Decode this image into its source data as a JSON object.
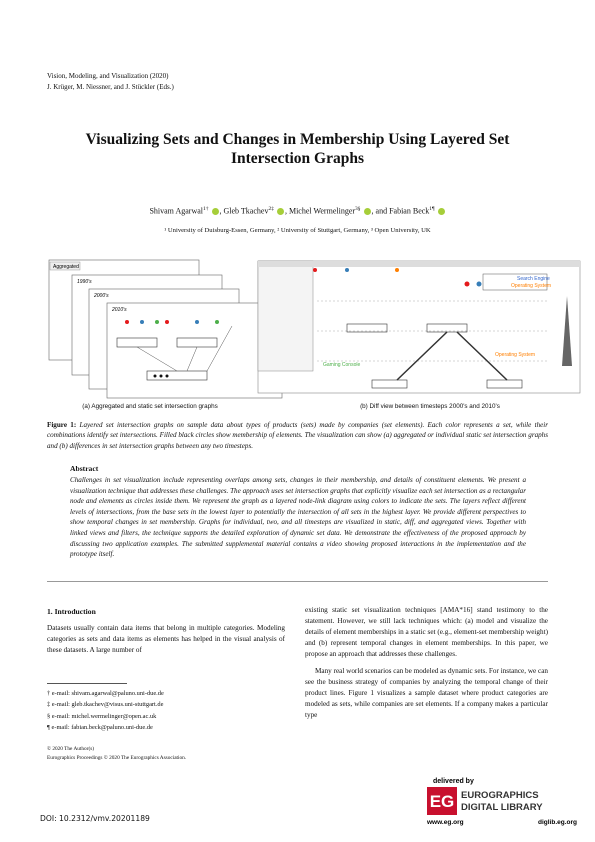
{
  "header": {
    "venue": "Vision, Modeling, and Visualization (2020)",
    "editors": "J. Krüger, M. Niessner, and J. Stückler (Eds.)"
  },
  "title": "Visualizing Sets and Changes in Membership Using Layered Set Intersection Graphs",
  "authors": [
    {
      "name": "Shivam Agarwal",
      "sup": "1†"
    },
    {
      "name": ", Gleb Tkachev",
      "sup": "2‡"
    },
    {
      "name": ", Michel Wermelinger",
      "sup": "3§"
    },
    {
      "name": ", and Fabian Beck",
      "sup": "1¶"
    }
  ],
  "affiliations": "¹ University of Duisburg-Essen, Germany, ² University of Stuttgart, Germany, ³ Open University, UK",
  "figure": {
    "panel_labels": [
      "Aggregated",
      "1990's",
      "2000's",
      "2010's"
    ],
    "screen_labels": [
      "Search Engine",
      "Operating System",
      "Gaming Console",
      "Operating System"
    ],
    "subcaption_a": "(a) Aggregated and static set intersection graphs",
    "subcaption_b": "(b) Diff view between timesteps 2000's and 2010's",
    "caption_label": "Figure 1:",
    "caption": "Layered set intersection graphs on sample data about types of products (sets) made by companies (set elements). Each color represents a set, while their combinations identify set intersections. Filled black circles show membership of elements. The visualization can show (a) aggregated or individual static set intersection graphs and (b) differences in set intersection graphs between any two timesteps."
  },
  "abstract": {
    "heading": "Abstract",
    "text": "Challenges in set visualization include representing overlaps among sets, changes in their membership, and details of constituent elements. We present a visualization technique that addresses these challenges. The approach uses set intersection graphs that explicitly visualize each set intersection as a rectangular node and elements as circles inside them. We represent the graph as a layered node-link diagram using colors to indicate the sets. The layers reflect different levels of intersections, from the base sets in the lowest layer to potentially the intersection of all sets in the highest layer. We provide different perspectives to show temporal changes in set membership. Graphs for individual, two, and all timesteps are visualized in static, diff, and aggregated views. Together with linked views and filters, the technique supports the detailed exploration of dynamic set data. We demonstrate the effectiveness of the proposed approach by discussing two application examples. The submitted supplemental material contains a video showing proposed interactions in the implementation and the prototype itself."
  },
  "section": {
    "heading": "1. Introduction",
    "col1": [
      "Datasets usually contain data items that belong in multiple categories. Modeling categories as sets and data items as elements has helped in the visual analysis of these datasets. A large number of"
    ],
    "col2": [
      "existing static set visualization techniques [AMA*16] stand testimony to the statement. However, we still lack techniques which: (a) model and visualize the details of element memberships in a static set (e.g., element-set membership weight) and (b) represent temporal changes in element memberships. In this paper, we propose an approach that addresses these challenges.",
      "Many real world scenarios can be modeled as dynamic sets. For instance, we can see the business strategy of companies by analyzing the temporal change of their product lines. Figure 1 visualizes a sample dataset where product categories are modeled as sets, while companies are set elements. If a company makes a particular type"
    ]
  },
  "footnotes": [
    "† e-mail: shivam.agarwal@paluno.uni-due.de",
    "‡ e-mail: gleb.tkachev@visus.uni-stuttgart.de",
    "§ e-mail: michel.wermelinger@open.ac.uk",
    "¶ e-mail: fabian.beck@paluno.uni-due.de"
  ],
  "copyright": [
    "© 2020 The Author(s)",
    "Eurographics Proceedings © 2020 The Eurographics Association."
  ],
  "doi": "DOI: 10.2312/vmv.20201189",
  "logo": {
    "delivered": "delivered by",
    "eg": "EG",
    "name1": "EUROGRAPHICS",
    "name2": "DIGITAL LIBRARY",
    "url1": "www.eg.org",
    "url2": "diglib.eg.org"
  }
}
